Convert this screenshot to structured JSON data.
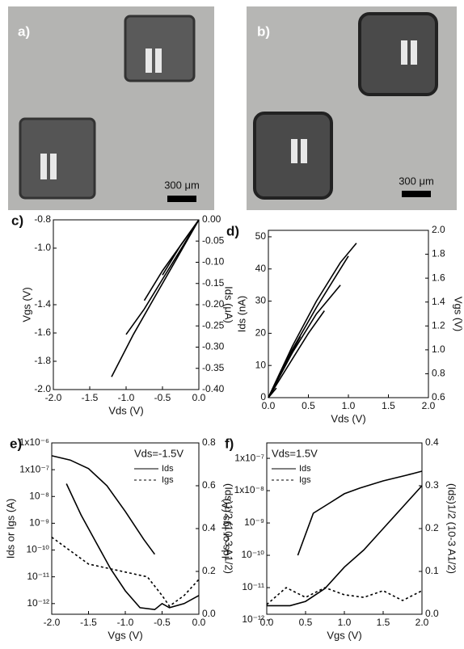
{
  "images": [
    {
      "label": "a)",
      "scale_label": "300 μm"
    },
    {
      "label": "b)",
      "scale_label": "300 μm"
    }
  ],
  "chart_data": [
    {
      "type": "line",
      "panel_label": "c)",
      "xlabel": "Vds (V)",
      "ylabel": "Vgs (V)",
      "y2label": "Ids (μA)",
      "xlim": [
        -2,
        0
      ],
      "xticks": [
        {
          "value": -2,
          "label": "-2.0"
        },
        -1.5,
        {
          "value": -1,
          "label": "-1.0"
        },
        -0.5,
        {
          "value": 0,
          "label": "0.0"
        }
      ],
      "ylim": [
        -2,
        -0.8
      ],
      "yticks": [
        -0.8,
        {
          "value": -1,
          "label": "-1.0"
        },
        -1.4,
        -1.6,
        -1.8,
        {
          "value": -2,
          "label": "-2.0"
        }
      ],
      "y2lim": [
        -0.4,
        0
      ],
      "y2ticks": [
        {
          "value": 0,
          "label": "0.00"
        },
        -0.05,
        {
          "value": -0.1,
          "label": "-0.10"
        },
        -0.15,
        {
          "value": -0.2,
          "label": "-0.20"
        },
        -0.25,
        {
          "value": -0.3,
          "label": "-0.30"
        },
        -0.35,
        {
          "value": -0.4,
          "label": "-0.40"
        }
      ],
      "series": [
        {
          "color": "#000000",
          "axis": "y2",
          "x": [
            0,
            -0.3,
            -0.6,
            -0.9,
            -1.2
          ],
          "values": [
            0,
            -0.09,
            -0.18,
            -0.27,
            -0.37
          ]
        },
        {
          "color": "#000000",
          "axis": "y2",
          "x": [
            0,
            -0.25,
            -0.5,
            -0.75,
            -1.0
          ],
          "values": [
            0,
            -0.07,
            -0.14,
            -0.21,
            -0.27
          ]
        },
        {
          "color": "#000000",
          "axis": "y2",
          "x": [
            0,
            -0.25,
            -0.5,
            -0.75
          ],
          "values": [
            0,
            -0.06,
            -0.12,
            -0.19
          ]
        },
        {
          "color": "#000000",
          "axis": "y2",
          "x": [
            0,
            -0.25,
            -0.5
          ],
          "values": [
            0,
            -0.06,
            -0.13
          ]
        }
      ]
    },
    {
      "type": "line",
      "panel_label": "d)",
      "xlabel": "Vds (V)",
      "ylabel": "Ids (nA)",
      "y2label": "Vgs (V)",
      "xlim": [
        0,
        2
      ],
      "xticks": [
        {
          "value": 0,
          "label": "0.0"
        },
        0.5,
        {
          "value": 1,
          "label": "1.0"
        },
        1.5,
        {
          "value": 2,
          "label": "2.0"
        }
      ],
      "ylim": [
        0,
        52
      ],
      "yticks": [
        0,
        10,
        20,
        30,
        40,
        50
      ],
      "y2lim": [
        0.6,
        2.0
      ],
      "y2ticks": [
        0.6,
        0.8,
        {
          "value": 1,
          "label": "1.0"
        },
        1.2,
        1.4,
        1.6,
        1.8,
        {
          "value": 2,
          "label": "2.0"
        }
      ],
      "series": [
        {
          "color": "#000000",
          "x": [
            0,
            0.3,
            0.6,
            0.9,
            1.1
          ],
          "values": [
            0,
            16,
            30,
            42,
            48
          ]
        },
        {
          "color": "#000000",
          "x": [
            0,
            0.3,
            0.6,
            0.85,
            1.0
          ],
          "values": [
            0,
            15,
            28,
            38,
            44
          ]
        },
        {
          "color": "#000000",
          "x": [
            0,
            0.3,
            0.6,
            0.9
          ],
          "values": [
            0,
            14,
            26,
            35
          ]
        },
        {
          "color": "#000000",
          "x": [
            0,
            0.3,
            0.5,
            0.7
          ],
          "values": [
            0,
            12,
            20,
            27
          ]
        },
        {
          "color": "#000000",
          "x": [
            0,
            0.2,
            0.4
          ],
          "values": [
            0,
            10,
            19
          ]
        },
        {
          "color": "#000000",
          "x": [
            0,
            0.15,
            0.3
          ],
          "values": [
            0,
            8,
            14
          ]
        },
        {
          "color": "#000000",
          "x": [
            0,
            0.1
          ],
          "values": [
            0,
            3
          ]
        }
      ]
    },
    {
      "type": "line",
      "panel_label": "e)",
      "xlabel": "Vgs (V)",
      "ylabel": "Ids or Igs (A)",
      "y2label": "(Ids)1/2 (10-3 A1/2)",
      "annotation": "Vds=-1.5V",
      "ylog": true,
      "legend": "upper right",
      "xlim": [
        -2,
        0
      ],
      "xticks": [
        {
          "value": -2,
          "label": "-2.0"
        },
        -1.5,
        {
          "value": -1,
          "label": "-1.0"
        },
        -0.5,
        {
          "value": 0,
          "label": "0.0"
        }
      ],
      "ylim": [
        4e-13,
        1e-06
      ],
      "yticks": [
        {
          "value": 1e-06,
          "label": "1x10⁻⁶"
        },
        {
          "value": 1e-07,
          "label": "1x10⁻⁷"
        },
        {
          "value": 1e-08,
          "label": "10⁻⁸"
        },
        {
          "value": 1e-09,
          "label": "10⁻⁹"
        },
        {
          "value": 1e-10,
          "label": "10⁻¹⁰"
        },
        {
          "value": 1e-11,
          "label": "10⁻¹¹"
        },
        {
          "value": 1e-12,
          "label": "10⁻¹²"
        }
      ],
      "y2lim": [
        0,
        0.8
      ],
      "y2ticks": [
        {
          "value": 0,
          "label": "0.0"
        },
        0.2,
        0.4,
        0.6,
        0.8
      ],
      "series": [
        {
          "name": "Ids",
          "color": "#000000",
          "style": "solid",
          "x": [
            -1.8,
            -1.6,
            -1.4,
            -1.2,
            -1.0,
            -0.8,
            -0.6,
            -0.5,
            -0.4,
            -0.2,
            0.0
          ],
          "values": [
            3e-08,
            2e-09,
            2e-10,
            2e-11,
            3e-12,
            7e-13,
            6e-13,
            1e-12,
            7e-13,
            1e-12,
            2e-12
          ]
        },
        {
          "name": "Igs",
          "color": "#000000",
          "style": "dotted",
          "x": [
            -2.0,
            -1.5,
            -1.0,
            -0.7,
            -0.5,
            -0.4,
            -0.2,
            0.0
          ],
          "values": [
            3e-10,
            3e-11,
            1.5e-11,
            1e-11,
            2e-12,
            8e-13,
            2e-12,
            8e-12
          ]
        },
        {
          "color": "#000000",
          "style": "solid",
          "axis": "y2",
          "x": [
            -2.0,
            -1.75,
            -1.5,
            -1.25,
            -1.0,
            -0.75,
            -0.6
          ],
          "values": [
            0.74,
            0.72,
            0.68,
            0.6,
            0.48,
            0.35,
            0.28
          ]
        }
      ]
    },
    {
      "type": "line",
      "panel_label": "f)",
      "xlabel": "Vgs (V)",
      "ylabel": "Ids or Igs (A)",
      "y2label": "(Ids)1/2 (10-3 A1/2)",
      "annotation": "Vds=1.5V",
      "ylog": true,
      "legend": "upper left",
      "xlim": [
        0,
        2
      ],
      "xticks": [
        {
          "value": 0,
          "label": "0.0"
        },
        0.5,
        {
          "value": 1,
          "label": "1.0"
        },
        1.5,
        {
          "value": 2,
          "label": "2.0"
        }
      ],
      "ylim": [
        1.5e-12,
        3e-07
      ],
      "yticks": [
        {
          "value": 1e-07,
          "label": "1x10⁻⁷"
        },
        {
          "value": 1e-08,
          "label": "1x10⁻⁸"
        },
        {
          "value": 1e-09,
          "label": "10⁻⁹"
        },
        {
          "value": 1e-10,
          "label": "10⁻¹⁰"
        },
        {
          "value": 1e-11,
          "label": "10⁻¹¹"
        },
        {
          "value": 1e-12,
          "label": "10⁻¹²"
        }
      ],
      "y2lim": [
        0,
        0.4
      ],
      "y2ticks": [
        {
          "value": 0,
          "label": "0.0"
        },
        0.1,
        0.2,
        0.3,
        0.4
      ],
      "series": [
        {
          "name": "Ids",
          "color": "#000000",
          "style": "solid",
          "x": [
            0.4,
            0.6,
            0.8,
            1.0,
            1.2,
            1.5,
            1.8,
            2.0
          ],
          "values": [
            1e-10,
            2e-09,
            4e-09,
            8e-09,
            1.2e-08,
            2e-08,
            3e-08,
            4e-08
          ]
        },
        {
          "name": "Igs",
          "color": "#000000",
          "style": "dotted",
          "x": [
            0,
            0.25,
            0.5,
            0.75,
            1.0,
            1.25,
            1.5,
            1.75,
            2.0
          ],
          "values": [
            3e-12,
            1e-11,
            5e-12,
            1e-11,
            6e-12,
            5e-12,
            8e-12,
            4e-12,
            8e-12
          ]
        },
        {
          "color": "#000000",
          "style": "solid",
          "axis": "y2",
          "x": [
            0,
            0.3,
            0.5,
            0.75,
            1.0,
            1.25,
            1.5,
            1.75,
            2.0
          ],
          "values": [
            0.02,
            0.02,
            0.03,
            0.06,
            0.11,
            0.15,
            0.2,
            0.25,
            0.3
          ]
        }
      ]
    }
  ]
}
